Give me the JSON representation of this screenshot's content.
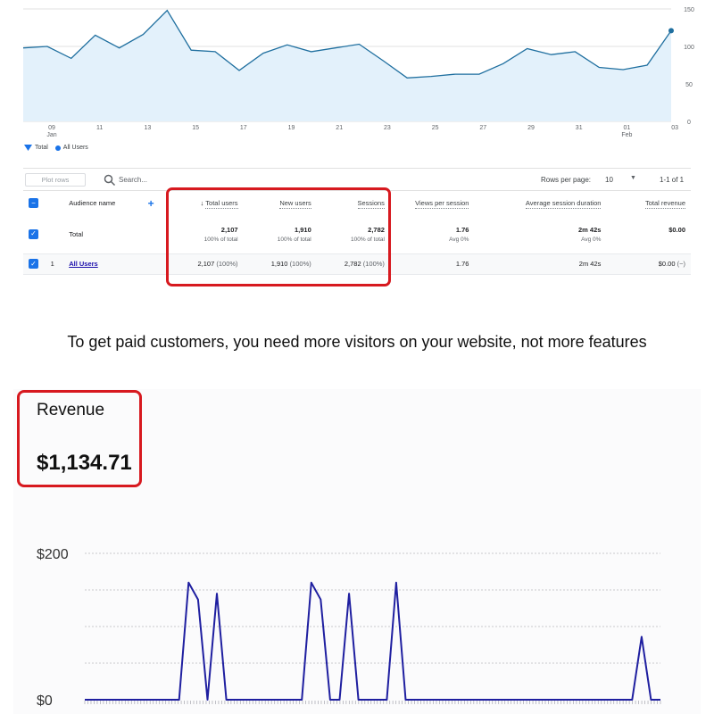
{
  "users_chart": {
    "x_ticks": [
      "09",
      "11",
      "13",
      "15",
      "17",
      "19",
      "21",
      "23",
      "25",
      "27",
      "29",
      "31",
      "01",
      "03"
    ],
    "x_months": {
      "09": "Jan",
      "01": "Feb"
    },
    "y_ticks": [
      "150",
      "100",
      "50",
      "0"
    ],
    "ylim": [
      0,
      150
    ],
    "line_color": "#1f6f9f",
    "fill_color": "#e3f1fb",
    "values": [
      98,
      100,
      84,
      115,
      98,
      116,
      148,
      95,
      93,
      68,
      91,
      102,
      93,
      98,
      103,
      81,
      58,
      60,
      63,
      63,
      77,
      97,
      89,
      93,
      72,
      69,
      75,
      121
    ]
  },
  "legend": {
    "total": "Total",
    "all_users": "All Users"
  },
  "toolbar": {
    "plot_rows": "Plot rows",
    "search_placeholder": "Search...",
    "rows_per_page_label": "Rows per page:",
    "rows_per_page_value": "10",
    "pagination": "1-1 of 1"
  },
  "table": {
    "headers": {
      "audience_name": "Audience name",
      "total_users": "Total users",
      "new_users": "New users",
      "sessions": "Sessions",
      "views_per_session": "Views per session",
      "avg_session_duration": "Average session duration",
      "total_revenue": "Total revenue"
    },
    "total_row": {
      "label": "Total",
      "total_users": "2,107",
      "total_users_sub": "100% of total",
      "new_users": "1,910",
      "new_users_sub": "100% of total",
      "sessions": "2,782",
      "sessions_sub": "100% of total",
      "views_per_session": "1.76",
      "views_per_session_sub": "Avg 0%",
      "avg_session_duration": "2m 42s",
      "avg_session_duration_sub": "Avg 0%",
      "total_revenue": "$0.00"
    },
    "rows": [
      {
        "index": "1",
        "name": "All Users",
        "total_users": "2,107",
        "total_users_pct": "(100%)",
        "new_users": "1,910",
        "new_users_pct": "(100%)",
        "sessions": "2,782",
        "sessions_pct": "(100%)",
        "views_per_session": "1.76",
        "avg_session_duration": "2m 42s",
        "total_revenue": "$0.00",
        "total_revenue_pct": "(−)"
      }
    ]
  },
  "caption": "To get paid customers, you need more visitors on your website, not more features",
  "revenue": {
    "title": "Revenue",
    "value": "$1,134.71",
    "y_ticks": [
      "$200",
      "$0"
    ],
    "ylim": [
      0,
      200
    ],
    "line_color": "#1f1fa0",
    "points": 62,
    "spikes": [
      [
        11,
        160
      ],
      [
        12,
        137
      ],
      [
        14,
        145
      ],
      [
        24,
        160
      ],
      [
        25,
        137
      ],
      [
        28,
        145
      ],
      [
        33,
        160
      ],
      [
        59,
        86
      ]
    ]
  },
  "colors": {
    "highlight": "#d7191f",
    "accent": "#1a73e8"
  }
}
